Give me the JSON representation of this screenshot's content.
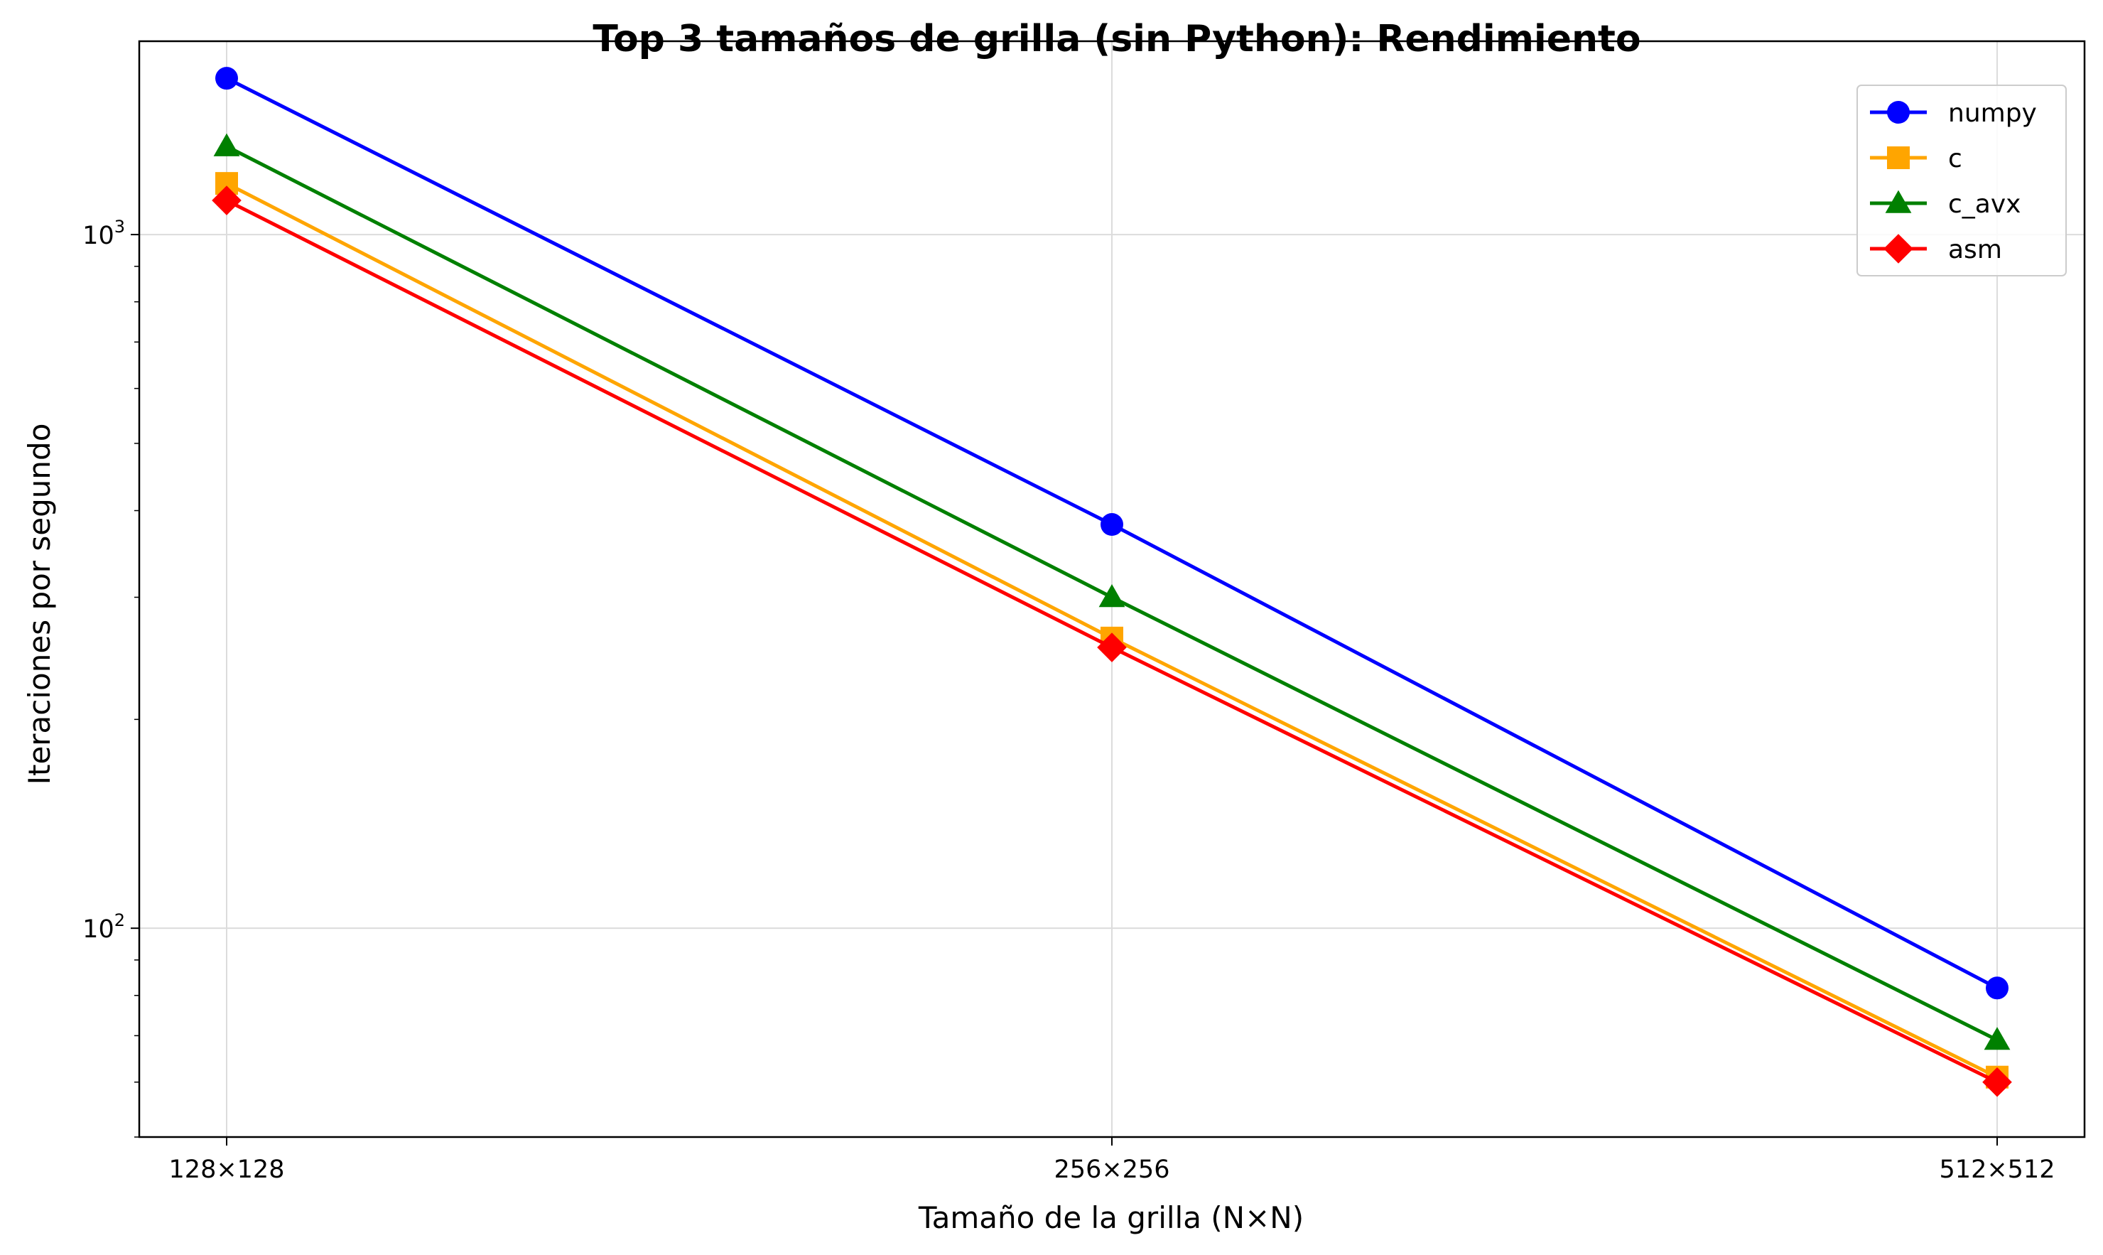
{
  "chart_data": {
    "type": "line",
    "title": "Top 3 tamaños de grilla (sin Python): Rendimiento",
    "xlabel": "Tamaño de la grilla (N×N)",
    "ylabel": "Iteraciones por segundo",
    "categories": [
      "128×128",
      "256×256",
      "512×512"
    ],
    "yscale": "log",
    "ylim": [
      50,
      1900
    ],
    "yticks": [
      {
        "value": 100,
        "base": "10",
        "exp": "2"
      },
      {
        "value": 1000,
        "base": "10",
        "exp": "3"
      }
    ],
    "grid": true,
    "legend_position": "top-right",
    "series": [
      {
        "name": "numpy",
        "color": "#0000ff",
        "marker": "circle",
        "values": [
          1680,
          382,
          82
        ]
      },
      {
        "name": "c",
        "color": "#ffa500",
        "marker": "square",
        "values": [
          1185,
          262,
          61
        ]
      },
      {
        "name": "c_avx",
        "color": "#008000",
        "marker": "triangle",
        "values": [
          1340,
          300,
          69
        ]
      },
      {
        "name": "asm",
        "color": "#ff0000",
        "marker": "diamond",
        "values": [
          1120,
          254,
          60
        ]
      }
    ]
  }
}
